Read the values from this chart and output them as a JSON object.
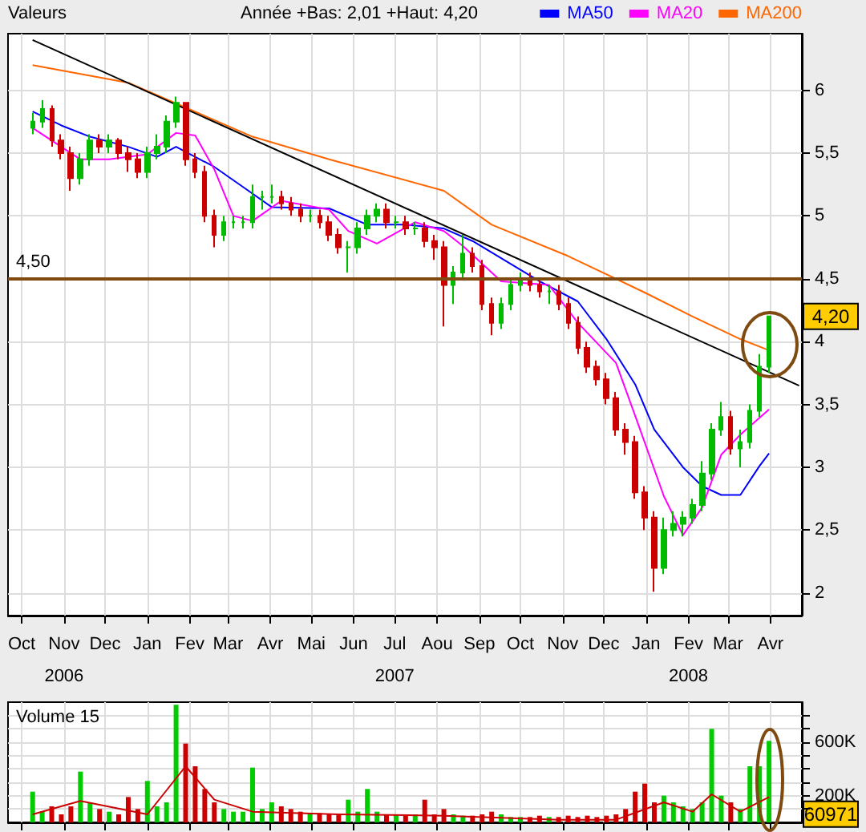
{
  "chart_data": [
    {
      "type": "candlestick",
      "title": "Valeurs",
      "subtitle": "Année +Bas: 2,01 +Haut: 4,20",
      "x": [
        "2006-10-23",
        "2006-10-30",
        "2006-11-06",
        "2006-11-13",
        "2006-11-20",
        "2006-11-27",
        "2006-12-04",
        "2006-12-11",
        "2006-12-18",
        "2006-12-25",
        "2007-01-01",
        "2007-01-08",
        "2007-01-15",
        "2007-01-22",
        "2007-01-29",
        "2007-02-05",
        "2007-02-12",
        "2007-02-19",
        "2007-02-26",
        "2007-03-05",
        "2007-03-12",
        "2007-03-19",
        "2007-03-26",
        "2007-04-02",
        "2007-04-09",
        "2007-04-16",
        "2007-04-23",
        "2007-04-30",
        "2007-05-07",
        "2007-05-14",
        "2007-05-21",
        "2007-05-28",
        "2007-06-04",
        "2007-06-11",
        "2007-06-18",
        "2007-06-25",
        "2007-07-02",
        "2007-07-09",
        "2007-07-16",
        "2007-07-23",
        "2007-07-30",
        "2007-08-06",
        "2007-08-13",
        "2007-08-20",
        "2007-08-27",
        "2007-09-03",
        "2007-09-10",
        "2007-09-17",
        "2007-09-24",
        "2007-10-01",
        "2007-10-08",
        "2007-10-15",
        "2007-10-22",
        "2007-10-29",
        "2007-11-05",
        "2007-11-12",
        "2007-11-19",
        "2007-11-26",
        "2007-12-03",
        "2007-12-10",
        "2007-12-17",
        "2007-12-24",
        "2007-12-31",
        "2008-01-07",
        "2008-01-14",
        "2008-01-21",
        "2008-01-28",
        "2008-02-04",
        "2008-02-11",
        "2008-02-18",
        "2008-02-25",
        "2008-03-03",
        "2008-03-10",
        "2008-03-17",
        "2008-03-24",
        "2008-03-31",
        "2008-04-07",
        "2008-04-14"
      ],
      "ohlc": [
        [
          5.7,
          5.82,
          5.65,
          5.75
        ],
        [
          5.75,
          5.92,
          5.7,
          5.85
        ],
        [
          5.85,
          5.88,
          5.55,
          5.6
        ],
        [
          5.6,
          5.65,
          5.45,
          5.5
        ],
        [
          5.5,
          5.55,
          5.2,
          5.3
        ],
        [
          5.3,
          5.5,
          5.25,
          5.45
        ],
        [
          5.45,
          5.65,
          5.4,
          5.6
        ],
        [
          5.6,
          5.65,
          5.5,
          5.55
        ],
        [
          5.55,
          5.65,
          5.5,
          5.6
        ],
        [
          5.6,
          5.62,
          5.45,
          5.5
        ],
        [
          5.5,
          5.55,
          5.35,
          5.45
        ],
        [
          5.45,
          5.5,
          5.3,
          5.35
        ],
        [
          5.35,
          5.55,
          5.3,
          5.5
        ],
        [
          5.5,
          5.65,
          5.45,
          5.55
        ],
        [
          5.55,
          5.8,
          5.5,
          5.75
        ],
        [
          5.75,
          5.95,
          5.7,
          5.9
        ],
        [
          5.9,
          5.9,
          5.4,
          5.45
        ],
        [
          5.45,
          5.5,
          5.3,
          5.35
        ],
        [
          5.35,
          5.4,
          4.95,
          5.0
        ],
        [
          5.0,
          5.05,
          4.75,
          4.85
        ],
        [
          4.85,
          5.0,
          4.8,
          4.95
        ],
        [
          4.95,
          5.0,
          4.9,
          4.95
        ],
        [
          4.95,
          5.0,
          4.9,
          4.95
        ],
        [
          4.95,
          5.25,
          4.9,
          5.15
        ],
        [
          5.15,
          5.2,
          5.05,
          5.15
        ],
        [
          5.15,
          5.25,
          5.1,
          5.15
        ],
        [
          5.15,
          5.2,
          5.05,
          5.1
        ],
        [
          5.1,
          5.15,
          5.0,
          5.05
        ],
        [
          5.05,
          5.1,
          4.95,
          5.0
        ],
        [
          5.0,
          5.05,
          4.95,
          5.0
        ],
        [
          5.0,
          5.05,
          4.9,
          4.95
        ],
        [
          4.95,
          5.0,
          4.8,
          4.85
        ],
        [
          4.85,
          4.9,
          4.7,
          4.75
        ],
        [
          4.75,
          4.8,
          4.55,
          4.75
        ],
        [
          4.75,
          4.95,
          4.7,
          4.9
        ],
        [
          4.9,
          5.05,
          4.85,
          5.0
        ],
        [
          5.0,
          5.1,
          4.95,
          5.05
        ],
        [
          5.05,
          5.1,
          4.9,
          4.95
        ],
        [
          4.95,
          5.0,
          4.9,
          4.95
        ],
        [
          4.95,
          5.0,
          4.85,
          4.9
        ],
        [
          4.9,
          4.95,
          4.85,
          4.9
        ],
        [
          4.9,
          4.95,
          4.75,
          4.8
        ],
        [
          4.8,
          4.85,
          4.65,
          4.75
        ],
        [
          4.75,
          4.8,
          4.12,
          4.45
        ],
        [
          4.45,
          4.6,
          4.3,
          4.55
        ],
        [
          4.55,
          4.85,
          4.5,
          4.7
        ],
        [
          4.7,
          4.75,
          4.55,
          4.6
        ],
        [
          4.6,
          4.65,
          4.25,
          4.3
        ],
        [
          4.3,
          4.35,
          4.05,
          4.15
        ],
        [
          4.15,
          4.35,
          4.1,
          4.3
        ],
        [
          4.3,
          4.5,
          4.25,
          4.45
        ],
        [
          4.45,
          4.55,
          4.4,
          4.5
        ],
        [
          4.5,
          4.55,
          4.4,
          4.45
        ],
        [
          4.45,
          4.5,
          4.35,
          4.4
        ],
        [
          4.4,
          4.45,
          4.3,
          4.4
        ],
        [
          4.4,
          4.45,
          4.25,
          4.3
        ],
        [
          4.3,
          4.35,
          4.1,
          4.15
        ],
        [
          4.15,
          4.2,
          3.9,
          3.95
        ],
        [
          3.95,
          4.0,
          3.75,
          3.8
        ],
        [
          3.8,
          3.85,
          3.65,
          3.7
        ],
        [
          3.7,
          3.75,
          3.5,
          3.55
        ],
        [
          3.55,
          3.6,
          3.25,
          3.3
        ],
        [
          3.3,
          3.35,
          3.1,
          3.2
        ],
        [
          3.2,
          3.25,
          2.75,
          2.8
        ],
        [
          2.8,
          2.85,
          2.5,
          2.6
        ],
        [
          2.6,
          2.65,
          2.01,
          2.2
        ],
        [
          2.2,
          2.6,
          2.15,
          2.5
        ],
        [
          2.5,
          2.65,
          2.45,
          2.55
        ],
        [
          2.55,
          2.65,
          2.45,
          2.6
        ],
        [
          2.6,
          2.75,
          2.55,
          2.7
        ],
        [
          2.7,
          3.05,
          2.65,
          2.95
        ],
        [
          2.95,
          3.35,
          2.9,
          3.3
        ],
        [
          3.3,
          3.52,
          3.25,
          3.4
        ],
        [
          3.4,
          3.45,
          3.1,
          3.15
        ],
        [
          3.15,
          3.3,
          3.0,
          3.2
        ],
        [
          3.2,
          3.5,
          3.15,
          3.45
        ],
        [
          3.45,
          3.9,
          3.4,
          3.8
        ],
        [
          3.8,
          4.2,
          3.75,
          4.2
        ]
      ],
      "series": [
        {
          "type": "line",
          "name": "MA50",
          "color": "#0000ff",
          "x": [
            "2006-10-23",
            "2006-11-13",
            "2006-12-04",
            "2007-01-01",
            "2007-01-22",
            "2007-02-05",
            "2007-03-05",
            "2007-03-26",
            "2007-04-16",
            "2007-05-28",
            "2007-06-25",
            "2007-07-23",
            "2007-08-20",
            "2007-09-10",
            "2007-10-29",
            "2007-11-26",
            "2007-12-17",
            "2008-01-07",
            "2008-01-21",
            "2008-02-11",
            "2008-02-25",
            "2008-03-10",
            "2008-03-24",
            "2008-04-07",
            "2008-04-14"
          ],
          "values": [
            5.83,
            5.72,
            5.63,
            5.55,
            5.47,
            5.55,
            5.39,
            5.23,
            5.07,
            5.06,
            4.93,
            4.93,
            4.9,
            4.8,
            4.48,
            4.32,
            4.02,
            3.66,
            3.3,
            3.0,
            2.85,
            2.78,
            2.78,
            3.01,
            3.11
          ]
        },
        {
          "type": "line",
          "name": "MA20",
          "color": "#ff00ff",
          "x": [
            "2006-10-23",
            "2006-11-27",
            "2006-12-18",
            "2007-01-15",
            "2007-02-05",
            "2007-02-19",
            "2007-03-05",
            "2007-03-19",
            "2007-04-02",
            "2007-04-23",
            "2007-05-28",
            "2007-06-11",
            "2007-07-02",
            "2007-07-30",
            "2007-08-20",
            "2007-09-03",
            "2007-10-01",
            "2007-11-05",
            "2007-11-26",
            "2007-12-24",
            "2008-01-07",
            "2008-01-28",
            "2008-02-11",
            "2008-02-25",
            "2008-03-10",
            "2008-03-24",
            "2008-04-14"
          ],
          "values": [
            5.7,
            5.45,
            5.45,
            5.49,
            5.66,
            5.64,
            5.37,
            5.0,
            4.96,
            5.12,
            5.05,
            4.88,
            4.78,
            4.95,
            4.88,
            4.76,
            4.48,
            4.45,
            4.15,
            3.83,
            3.41,
            2.77,
            2.46,
            2.68,
            3.1,
            3.26,
            3.46
          ]
        },
        {
          "type": "line",
          "name": "MA200",
          "color": "#ff6600",
          "x": [
            "2006-10-23",
            "2007-01-01",
            "2007-04-02",
            "2007-05-28",
            "2007-08-20",
            "2007-09-24",
            "2007-11-19",
            "2008-01-14",
            "2008-02-18",
            "2008-03-24",
            "2008-04-14"
          ],
          "values": [
            6.2,
            6.06,
            5.63,
            5.45,
            5.2,
            4.93,
            4.68,
            4.39,
            4.2,
            4.02,
            3.93
          ]
        },
        {
          "type": "line",
          "color": "#000000",
          "x": [
            "2006-10-23",
            "2008-05-06"
          ],
          "values": [
            6.4,
            3.65
          ]
        }
      ],
      "marker": "none",
      "line_style": "solid",
      "xlim": [
        "2006-10-05",
        "2008-05-08"
      ],
      "xticks": [
        {
          "value": "2006-10-15",
          "label": "Oct"
        },
        {
          "value": "2006-11-15",
          "label": "Nov\n2006"
        },
        {
          "value": "2006-12-15",
          "label": "Dec"
        },
        {
          "value": "2007-01-15",
          "label": "Jan"
        },
        {
          "value": "2007-02-15",
          "label": "Fev"
        },
        {
          "value": "2007-03-15",
          "label": "Mar"
        },
        {
          "value": "2007-04-15",
          "label": "Avr"
        },
        {
          "value": "2007-05-15",
          "label": "Mai"
        },
        {
          "value": "2007-06-15",
          "label": "Jun"
        },
        {
          "value": "2007-07-15",
          "label": "Jul\n2007"
        },
        {
          "value": "2007-08-15",
          "label": "Aou"
        },
        {
          "value": "2007-09-15",
          "label": "Sep"
        },
        {
          "value": "2007-10-15",
          "label": "Oct"
        },
        {
          "value": "2007-11-15",
          "label": "Nov"
        },
        {
          "value": "2007-12-15",
          "label": "Dec"
        },
        {
          "value": "2008-01-15",
          "label": "Jan"
        },
        {
          "value": "2008-02-15",
          "label": "Fev\n2008"
        },
        {
          "value": "2008-03-15",
          "label": "Mar"
        },
        {
          "value": "2008-04-15",
          "label": "Avr"
        }
      ],
      "ylim": [
        1.82,
        6.45
      ],
      "yticks": [
        2,
        {
          "value": 2.5,
          "label": "2,5"
        },
        3,
        {
          "value": 3.5,
          "label": "3,5"
        },
        4,
        {
          "value": 4.5,
          "label": "4,5"
        },
        5,
        {
          "value": 5.5,
          "label": "5,5"
        },
        6
      ],
      "grid": true,
      "legend": "top right",
      "ref_lines": [
        {
          "axis": "y",
          "value": 4.5,
          "label": "4,50",
          "color": "#7f4a10"
        }
      ],
      "annotations": [
        {
          "text": "4,20",
          "y": 4.2
        }
      ]
    },
    {
      "type": "bar",
      "title": "Volume 15",
      "x": [
        "2006-10-23",
        "2006-10-30",
        "2006-11-06",
        "2006-11-13",
        "2006-11-20",
        "2006-11-27",
        "2006-12-04",
        "2006-12-11",
        "2006-12-18",
        "2006-12-25",
        "2007-01-01",
        "2007-01-08",
        "2007-01-15",
        "2007-01-22",
        "2007-01-29",
        "2007-02-05",
        "2007-02-12",
        "2007-02-19",
        "2007-02-26",
        "2007-03-05",
        "2007-03-12",
        "2007-03-19",
        "2007-03-26",
        "2007-04-02",
        "2007-04-09",
        "2007-04-16",
        "2007-04-23",
        "2007-04-30",
        "2007-05-07",
        "2007-05-14",
        "2007-05-21",
        "2007-05-28",
        "2007-06-04",
        "2007-06-11",
        "2007-06-18",
        "2007-06-25",
        "2007-07-02",
        "2007-07-09",
        "2007-07-16",
        "2007-07-23",
        "2007-07-30",
        "2007-08-06",
        "2007-08-13",
        "2007-08-20",
        "2007-08-27",
        "2007-09-03",
        "2007-09-10",
        "2007-09-17",
        "2007-09-24",
        "2007-10-01",
        "2007-10-08",
        "2007-10-15",
        "2007-10-22",
        "2007-10-29",
        "2007-11-05",
        "2007-11-12",
        "2007-11-19",
        "2007-11-26",
        "2007-12-03",
        "2007-12-10",
        "2007-12-17",
        "2007-12-24",
        "2007-12-31",
        "2008-01-07",
        "2008-01-14",
        "2008-01-21",
        "2008-01-28",
        "2008-02-04",
        "2008-02-11",
        "2008-02-18",
        "2008-02-25",
        "2008-03-03",
        "2008-03-10",
        "2008-03-17",
        "2008-03-24",
        "2008-03-31",
        "2008-04-07",
        "2008-04-14"
      ],
      "series": [
        {
          "values": [
            230000,
            80000,
            120000,
            60000,
            120000,
            380000,
            150000,
            100000,
            80000,
            60000,
            190000,
            100000,
            310000,
            120000,
            150000,
            880000,
            590000,
            420000,
            250000,
            150000,
            100000,
            80000,
            80000,
            410000,
            100000,
            150000,
            120000,
            100000,
            80000,
            70000,
            70000,
            60000,
            60000,
            170000,
            80000,
            250000,
            80000,
            60000,
            60000,
            50000,
            60000,
            170000,
            60000,
            100000,
            60000,
            50000,
            50000,
            60000,
            80000,
            60000,
            40000,
            40000,
            40000,
            50000,
            40000,
            40000,
            50000,
            40000,
            50000,
            40000,
            50000,
            60000,
            100000,
            230000,
            290000,
            150000,
            200000,
            150000,
            120000,
            100000,
            150000,
            700000,
            200000,
            150000,
            100000,
            420000,
            420000,
            610000
          ],
          "colors": [
            "#00cc00",
            "#00cc00",
            "#cc0000",
            "#cc0000",
            "#cc0000",
            "#00cc00",
            "#00cc00",
            "#cc0000",
            "#00cc00",
            "#cc0000",
            "#cc0000",
            "#cc0000",
            "#00cc00",
            "#00cc00",
            "#00cc00",
            "#00cc00",
            "#cc0000",
            "#cc0000",
            "#cc0000",
            "#cc0000",
            "#00cc00",
            "#00cc00",
            "#00cc00",
            "#00cc00",
            "#00cc00",
            "#00cc00",
            "#cc0000",
            "#cc0000",
            "#cc0000",
            "#00cc00",
            "#cc0000",
            "#cc0000",
            "#cc0000",
            "#00cc00",
            "#00cc00",
            "#00cc00",
            "#00cc00",
            "#cc0000",
            "#00cc00",
            "#cc0000",
            "#00cc00",
            "#cc0000",
            "#cc0000",
            "#cc0000",
            "#00cc00",
            "#00cc00",
            "#cc0000",
            "#cc0000",
            "#cc0000",
            "#00cc00",
            "#00cc00",
            "#00cc00",
            "#cc0000",
            "#cc0000",
            "#00cc00",
            "#cc0000",
            "#cc0000",
            "#cc0000",
            "#cc0000",
            "#cc0000",
            "#cc0000",
            "#cc0000",
            "#cc0000",
            "#cc0000",
            "#cc0000",
            "#cc0000",
            "#00cc00",
            "#00cc00",
            "#00cc00",
            "#00cc00",
            "#00cc00",
            "#00cc00",
            "#00cc00",
            "#cc0000",
            "#00cc00",
            "#00cc00",
            "#00cc00",
            "#00cc00"
          ]
        },
        {
          "type": "line",
          "color": "#cc0000",
          "x": [
            "2006-10-23",
            "2006-11-27",
            "2007-01-15",
            "2007-02-12",
            "2007-03-05",
            "2007-04-02",
            "2007-06-04",
            "2007-08-20",
            "2007-11-12",
            "2007-12-24",
            "2008-01-28",
            "2008-02-18",
            "2008-03-03",
            "2008-03-24",
            "2008-04-14"
          ],
          "values": [
            60000,
            160000,
            60000,
            420000,
            170000,
            80000,
            60000,
            50000,
            20000,
            20000,
            150000,
            80000,
            210000,
            80000,
            190000
          ]
        }
      ],
      "marker": "none",
      "xlim": [
        "2006-10-05",
        "2008-05-08"
      ],
      "xticks": [
        "2006-10-15",
        "2006-11-15",
        "2006-12-15",
        "2007-01-15",
        "2007-02-15",
        "2007-03-15",
        "2007-04-15",
        "2007-05-15",
        "2007-06-15",
        "2007-07-15",
        "2007-08-15",
        "2007-09-15",
        "2007-10-15",
        "2007-11-15",
        "2007-12-15",
        "2008-01-15",
        "2008-02-15",
        "2008-03-15",
        "2008-04-15"
      ],
      "ylim": [
        0,
        900000
      ],
      "yticks": [
        {
          "value": 100000,
          "label": null
        },
        {
          "value": 200000,
          "label": "200K"
        },
        {
          "value": 300000,
          "label": null
        },
        {
          "value": 400000,
          "label": null
        },
        {
          "value": 500000,
          "label": null
        },
        {
          "value": 600000,
          "label": "600K"
        },
        {
          "value": 700000,
          "label": null
        },
        {
          "value": 800000,
          "label": null
        }
      ],
      "tick_labels": "y",
      "grid": true,
      "annotations": [
        {
          "text": "60971",
          "y": 60971
        }
      ]
    }
  ]
}
